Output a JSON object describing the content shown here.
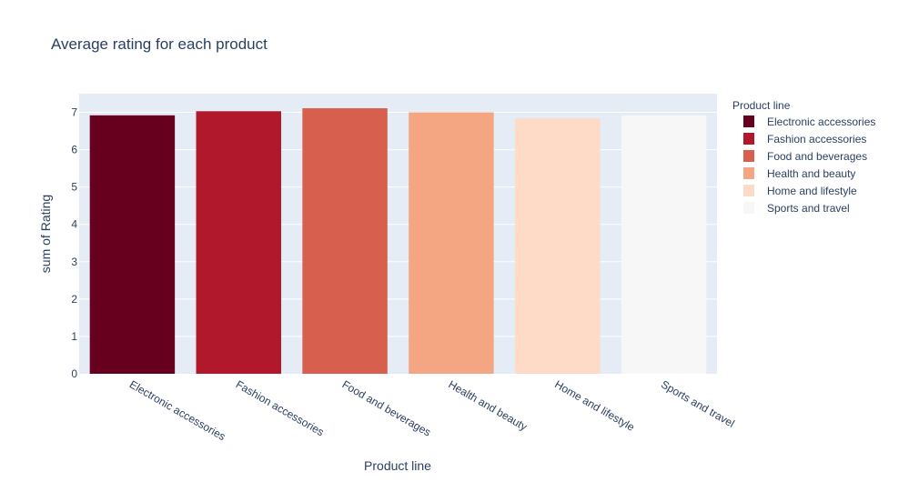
{
  "chart_data": {
    "type": "bar",
    "title": "Average rating for each product",
    "xlabel": "Product line",
    "ylabel": "sum of Rating",
    "categories": [
      "Electronic accessories",
      "Fashion accessories",
      "Food and beverages",
      "Health and beauty",
      "Home and lifestyle",
      "Sports and travel"
    ],
    "values": [
      6.92,
      7.03,
      7.11,
      7.0,
      6.84,
      6.92
    ],
    "colors": [
      "#67001f",
      "#b2182b",
      "#d6604d",
      "#f4a582",
      "#fddbc7",
      "#f7f7f7"
    ],
    "ylim": [
      0,
      7.5
    ],
    "yticks": [
      0,
      1,
      2,
      3,
      4,
      5,
      6,
      7
    ],
    "grid": true,
    "plot_bgcolor": "#e5ecf6",
    "legend": {
      "title": "Product line",
      "placement": "right",
      "entries": [
        "Electronic accessories",
        "Fashion accessories",
        "Food and beverages",
        "Health and beauty",
        "Home and lifestyle",
        "Sports and travel"
      ]
    }
  }
}
